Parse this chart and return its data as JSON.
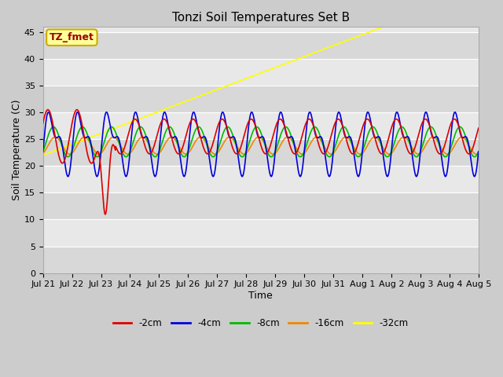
{
  "title": "Tonzi Soil Temperatures Set B",
  "xlabel": "Time",
  "ylabel": "Soil Temperature (C)",
  "ylim": [
    0,
    46
  ],
  "yticks": [
    0,
    5,
    10,
    15,
    20,
    25,
    30,
    35,
    40,
    45
  ],
  "fig_width": 6.4,
  "fig_height": 4.8,
  "fig_dpi": 100,
  "xtick_labels": [
    "Jul 21",
    "Jul 22",
    "Jul 23",
    "Jul 24",
    "Jul 25",
    "Jul 26",
    "Jul 27",
    "Jul 28",
    "Jul 29",
    "Jul 30",
    "Jul 31",
    "Aug 1",
    "Aug 2",
    "Aug 3",
    "Aug 4",
    "Aug 5"
  ],
  "n_days": 15,
  "fig_bg": "#cccccc",
  "plot_bg": "#e8e8e8",
  "grid_color": "#ffffff",
  "band_color_light": "#e8e8e8",
  "band_color_dark": "#d8d8d8",
  "colors": {
    "2cm": "#dd0000",
    "4cm": "#0000dd",
    "8cm": "#00bb00",
    "16cm": "#ee8800",
    "32cm": "#ffff00"
  },
  "legend_label": "TZ_fmet",
  "legend_bg": "#ffff99",
  "legend_border": "#ccaa00",
  "legend_text_color": "#990000",
  "annotation_fontsize": 9,
  "title_fontsize": 11,
  "axis_label_fontsize": 9,
  "tick_fontsize": 8
}
